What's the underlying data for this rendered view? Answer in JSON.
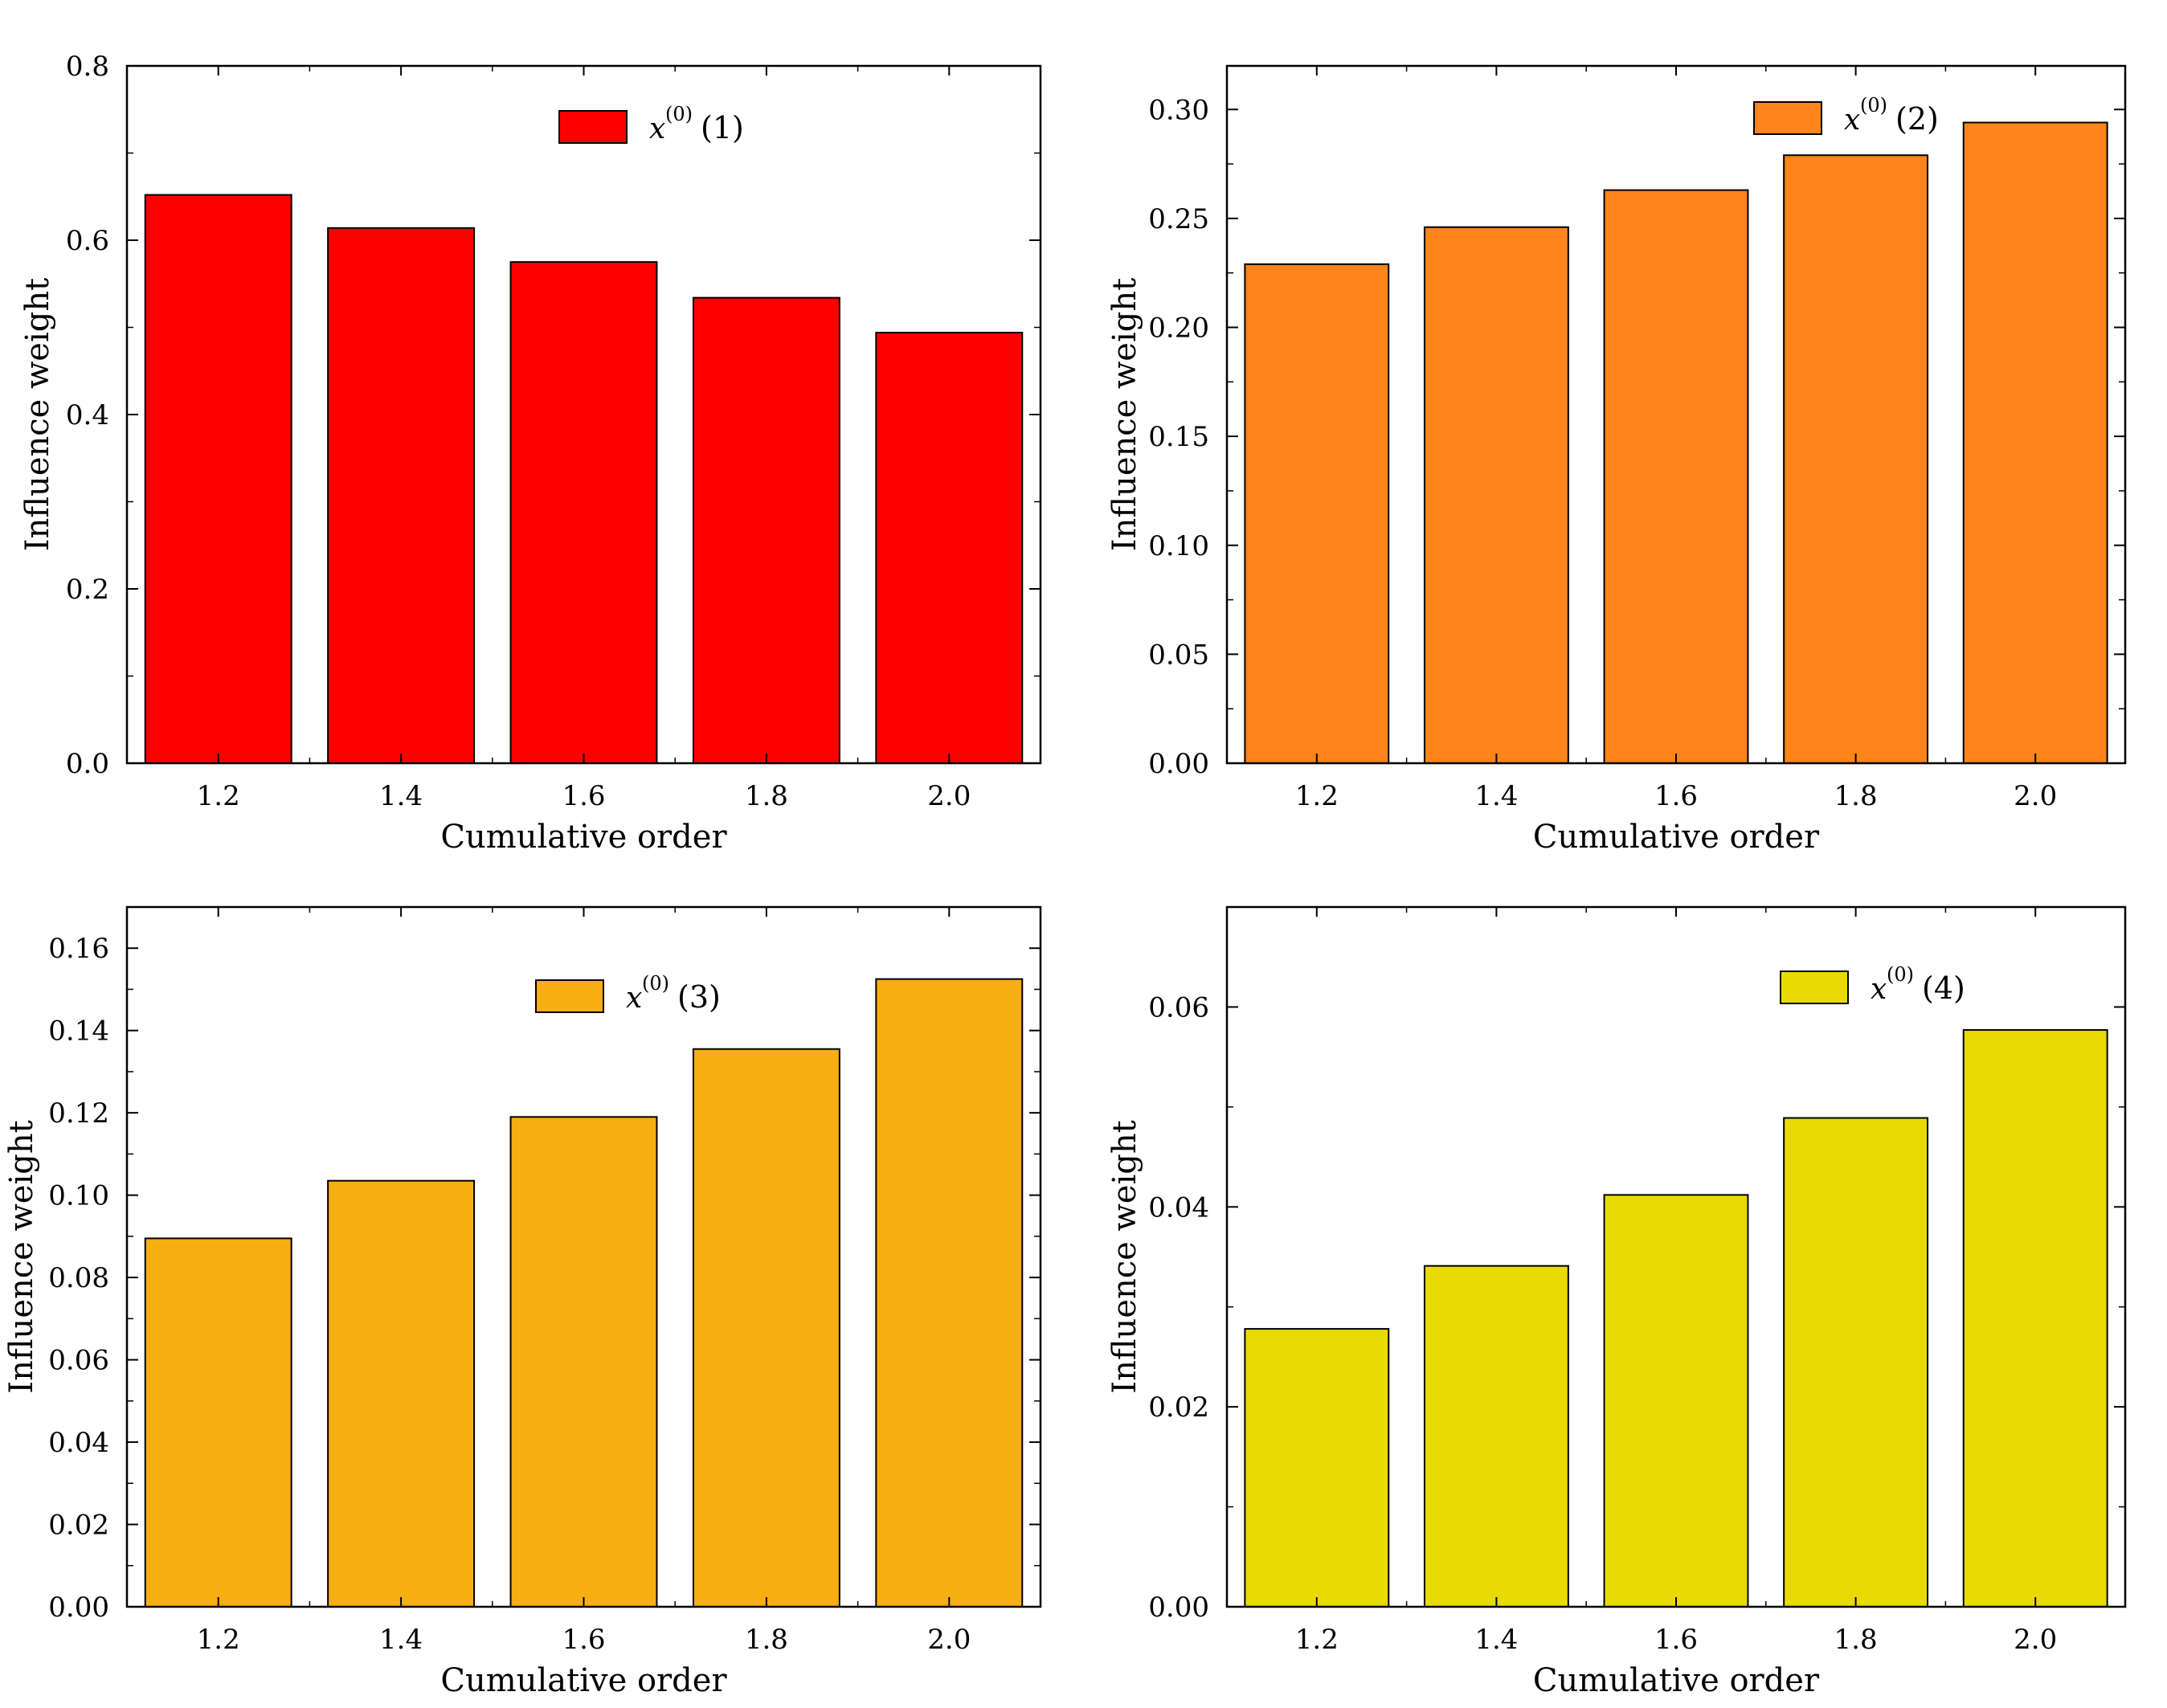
{
  "chart_data": [
    {
      "type": "bar",
      "categories": [
        "1.2",
        "1.4",
        "1.6",
        "1.8",
        "2.0"
      ],
      "values": [
        0.652,
        0.614,
        0.575,
        0.534,
        0.494
      ],
      "xlabel": "Cumulative order",
      "ylabel": "Influence weight",
      "ylim": [
        0,
        0.8
      ],
      "yticks": [
        "0.0",
        "0.2",
        "0.4",
        "0.6",
        "0.8"
      ],
      "color": "#ff0000",
      "legend": {
        "symbol": "x",
        "superscript": "(0)",
        "index": "(1)",
        "placement": "top-center"
      }
    },
    {
      "type": "bar",
      "categories": [
        "1.2",
        "1.4",
        "1.6",
        "1.8",
        "2.0"
      ],
      "values": [
        0.229,
        0.246,
        0.263,
        0.279,
        0.294
      ],
      "xlabel": "Cumulative order",
      "ylabel": "Influence weight",
      "ylim": [
        0,
        0.32
      ],
      "yticks": [
        "0.00",
        "0.05",
        "0.10",
        "0.15",
        "0.20",
        "0.25",
        "0.30"
      ],
      "color": "#ff8419",
      "legend": {
        "symbol": "x",
        "superscript": "(0)",
        "index": "(2)",
        "placement": "top-right"
      }
    },
    {
      "type": "bar",
      "categories": [
        "1.2",
        "1.4",
        "1.6",
        "1.8",
        "2.0"
      ],
      "values": [
        0.0895,
        0.1035,
        0.119,
        0.1355,
        0.1525
      ],
      "xlabel": "Cumulative order",
      "ylabel": "Influence weight",
      "ylim": [
        0,
        0.17
      ],
      "yticks": [
        "0.00",
        "0.02",
        "0.04",
        "0.06",
        "0.08",
        "0.10",
        "0.12",
        "0.14",
        "0.16"
      ],
      "color": "#f7ae12",
      "legend": {
        "symbol": "x",
        "superscript": "(0)",
        "index": "(3)",
        "placement": "top-center"
      }
    },
    {
      "type": "bar",
      "categories": [
        "1.2",
        "1.4",
        "1.6",
        "1.8",
        "2.0"
      ],
      "values": [
        0.0278,
        0.0341,
        0.0412,
        0.0489,
        0.0577
      ],
      "xlabel": "Cumulative order",
      "ylabel": "Influence weight",
      "ylim": [
        0,
        0.07
      ],
      "yticks": [
        "0.00",
        "0.02",
        "0.04",
        "0.06"
      ],
      "color": "#e8db03",
      "legend": {
        "symbol": "x",
        "superscript": "(0)",
        "index": "(4)",
        "placement": "top-right"
      }
    }
  ]
}
